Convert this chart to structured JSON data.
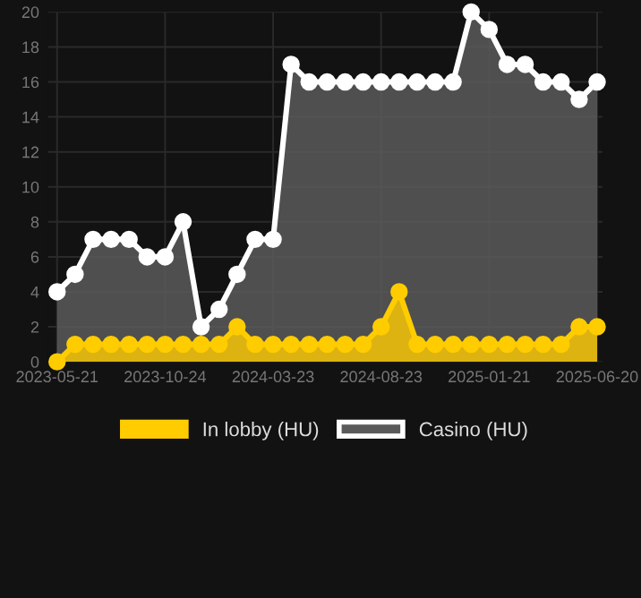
{
  "chart_data": {
    "type": "area",
    "categories": [
      "2023-05-21",
      null,
      null,
      null,
      null,
      null,
      "2023-10-24",
      null,
      null,
      null,
      null,
      null,
      "2024-03-23",
      null,
      null,
      null,
      null,
      null,
      "2024-08-23",
      null,
      null,
      null,
      null,
      null,
      "2025-01-21",
      null,
      null,
      null,
      null,
      null,
      "2025-06-20"
    ],
    "series": [
      {
        "name": "In lobby (HU)",
        "color": "#ffcc00",
        "values": [
          0,
          1,
          1,
          1,
          1,
          1,
          1,
          1,
          1,
          1,
          2,
          1,
          1,
          1,
          1,
          1,
          1,
          1,
          2,
          4,
          1,
          1,
          1,
          1,
          1,
          1,
          1,
          1,
          1,
          2,
          2
        ]
      },
      {
        "name": "Casino (HU)",
        "color": "#ffffff",
        "values": [
          4,
          5,
          7,
          7,
          7,
          6,
          6,
          8,
          2,
          3,
          5,
          7,
          7,
          17,
          16,
          16,
          16,
          16,
          16,
          16,
          16,
          16,
          16,
          20,
          19,
          17,
          17,
          16,
          16,
          15,
          16
        ]
      }
    ],
    "ylim": [
      0,
      20
    ],
    "yticks": [
      0,
      2,
      4,
      6,
      8,
      10,
      12,
      14,
      16,
      18,
      20
    ],
    "grid": true,
    "legend": "bottom",
    "marker": "circle",
    "line_style": "solid"
  }
}
